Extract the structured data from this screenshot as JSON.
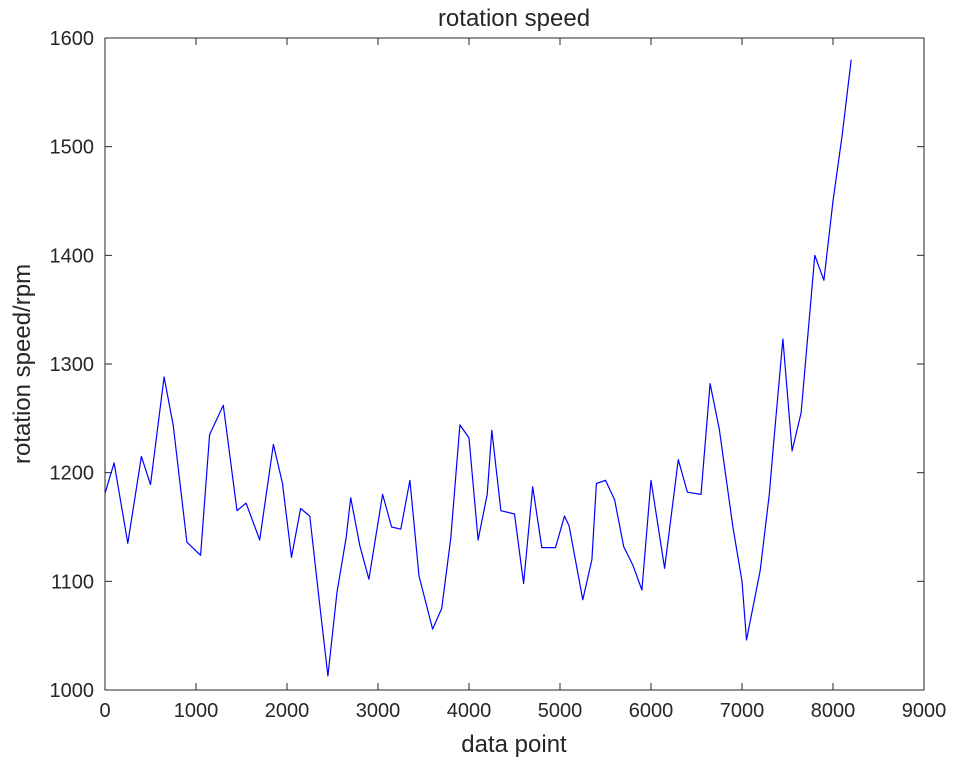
{
  "figure": {
    "background": "#ffffff"
  },
  "chart_data": {
    "type": "line",
    "title": "rotation speed",
    "xlabel": "data point",
    "ylabel": "rotation speed/rpm",
    "xlim": [
      0,
      9000
    ],
    "ylim": [
      1000,
      1600
    ],
    "x_ticks": [
      0,
      1000,
      2000,
      3000,
      4000,
      5000,
      6000,
      7000,
      8000,
      9000
    ],
    "y_ticks": [
      1000,
      1100,
      1200,
      1300,
      1400,
      1500,
      1600
    ],
    "grid": false,
    "legend": "none",
    "line_color": "#0000ff",
    "axis_color": "#262626",
    "x": [
      0,
      100,
      250,
      400,
      500,
      650,
      750,
      900,
      1050,
      1150,
      1300,
      1450,
      1550,
      1700,
      1850,
      1950,
      2050,
      2150,
      2250,
      2350,
      2450,
      2550,
      2650,
      2700,
      2800,
      2900,
      3050,
      3150,
      3250,
      3350,
      3450,
      3600,
      3700,
      3800,
      3900,
      4000,
      4100,
      4200,
      4250,
      4350,
      4500,
      4600,
      4700,
      4800,
      4950,
      5050,
      5100,
      5250,
      5350,
      5400,
      5500,
      5600,
      5700,
      5800,
      5900,
      6000,
      6150,
      6300,
      6400,
      6550,
      6650,
      6750,
      6900,
      7000,
      7050,
      7200,
      7300,
      7350,
      7450,
      7550,
      7650,
      7800,
      7900,
      8000,
      8100,
      8200
    ],
    "y": [
      1181,
      1209,
      1135,
      1215,
      1189,
      1288,
      1243,
      1136,
      1124,
      1235,
      1262,
      1165,
      1172,
      1138,
      1226,
      1190,
      1122,
      1167,
      1160,
      1085,
      1013,
      1090,
      1140,
      1177,
      1133,
      1102,
      1180,
      1150,
      1148,
      1193,
      1105,
      1056,
      1075,
      1140,
      1244,
      1232,
      1138,
      1180,
      1239,
      1165,
      1162,
      1098,
      1187,
      1131,
      1131,
      1160,
      1151,
      1083,
      1120,
      1190,
      1193,
      1175,
      1132,
      1115,
      1092,
      1193,
      1112,
      1212,
      1182,
      1180,
      1282,
      1240,
      1150,
      1100,
      1046,
      1110,
      1180,
      1230,
      1323,
      1220,
      1255,
      1400,
      1377,
      1450,
      1510,
      1580
    ]
  }
}
